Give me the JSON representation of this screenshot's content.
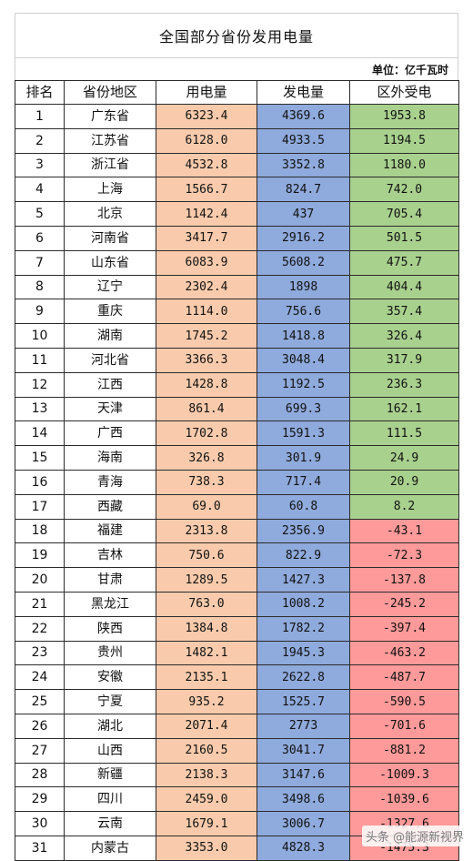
{
  "title": "全国部分省份发用电量",
  "unit": "单位：亿千瓦时",
  "headers": [
    "排名",
    "省份地区",
    "用电量",
    "发电量",
    "区外受电"
  ],
  "rows": [
    {
      "rank": "1",
      "province": "广东省",
      "usage": "6323.4",
      "generation": "4369.6",
      "external": "1953.8"
    },
    {
      "rank": "2",
      "province": "江苏省",
      "usage": "6128.0",
      "generation": "4933.5",
      "external": "1194.5"
    },
    {
      "rank": "3",
      "province": "浙江省",
      "usage": "4532.8",
      "generation": "3352.8",
      "external": "1180.0"
    },
    {
      "rank": "4",
      "province": "上海",
      "usage": "1566.7",
      "generation": "824.7",
      "external": "742.0"
    },
    {
      "rank": "5",
      "province": "北京",
      "usage": "1142.4",
      "generation": "437",
      "external": "705.4"
    },
    {
      "rank": "6",
      "province": "河南省",
      "usage": "3417.7",
      "generation": "2916.2",
      "external": "501.5"
    },
    {
      "rank": "7",
      "province": "山东省",
      "usage": "6083.9",
      "generation": "5608.2",
      "external": "475.7"
    },
    {
      "rank": "8",
      "province": "辽宁",
      "usage": "2302.4",
      "generation": "1898",
      "external": "404.4"
    },
    {
      "rank": "9",
      "province": "重庆",
      "usage": "1114.0",
      "generation": "756.6",
      "external": "357.4"
    },
    {
      "rank": "10",
      "province": "湖南",
      "usage": "1745.2",
      "generation": "1418.8",
      "external": "326.4"
    },
    {
      "rank": "11",
      "province": "河北省",
      "usage": "3366.3",
      "generation": "3048.4",
      "external": "317.9"
    },
    {
      "rank": "12",
      "province": "江西",
      "usage": "1428.8",
      "generation": "1192.5",
      "external": "236.3"
    },
    {
      "rank": "13",
      "province": "天津",
      "usage": "861.4",
      "generation": "699.3",
      "external": "162.1"
    },
    {
      "rank": "14",
      "province": "广西",
      "usage": "1702.8",
      "generation": "1591.3",
      "external": "111.5"
    },
    {
      "rank": "15",
      "province": "海南",
      "usage": "326.8",
      "generation": "301.9",
      "external": "24.9"
    },
    {
      "rank": "16",
      "province": "青海",
      "usage": "738.3",
      "generation": "717.4",
      "external": "20.9"
    },
    {
      "rank": "17",
      "province": "西藏",
      "usage": "69.0",
      "generation": "60.8",
      "external": "8.2"
    },
    {
      "rank": "18",
      "province": "福建",
      "usage": "2313.8",
      "generation": "2356.9",
      "external": "-43.1"
    },
    {
      "rank": "19",
      "province": "吉林",
      "usage": "750.6",
      "generation": "822.9",
      "external": "-72.3"
    },
    {
      "rank": "20",
      "province": "甘肃",
      "usage": "1289.5",
      "generation": "1427.3",
      "external": "-137.8"
    },
    {
      "rank": "21",
      "province": "黑龙江",
      "usage": "763.0",
      "generation": "1008.2",
      "external": "-245.2"
    },
    {
      "rank": "22",
      "province": "陕西",
      "usage": "1384.8",
      "generation": "1782.2",
      "external": "-397.4"
    },
    {
      "rank": "23",
      "province": "贵州",
      "usage": "1482.1",
      "generation": "1945.3",
      "external": "-463.2"
    },
    {
      "rank": "24",
      "province": "安徽",
      "usage": "2135.1",
      "generation": "2622.8",
      "external": "-487.7"
    },
    {
      "rank": "25",
      "province": "宁夏",
      "usage": "935.2",
      "generation": "1525.7",
      "external": "-590.5"
    },
    {
      "rank": "26",
      "province": "湖北",
      "usage": "2071.4",
      "generation": "2773",
      "external": "-701.6"
    },
    {
      "rank": "27",
      "province": "山西",
      "usage": "2160.5",
      "generation": "3041.7",
      "external": "-881.2"
    },
    {
      "rank": "28",
      "province": "新疆",
      "usage": "2138.3",
      "generation": "3147.6",
      "external": "-1009.3"
    },
    {
      "rank": "29",
      "province": "四川",
      "usage": "2459.0",
      "generation": "3498.6",
      "external": "-1039.6"
    },
    {
      "rank": "30",
      "province": "云南",
      "usage": "1679.1",
      "generation": "3006.7",
      "external": "-1327.6"
    },
    {
      "rank": "31",
      "province": "内蒙古",
      "usage": "3353.0",
      "generation": "4828.3",
      "external": "-1475.3"
    }
  ],
  "colors": {
    "usage_fill": "#f9cbac",
    "generation_fill": "#8faadc",
    "external_positive_fill": "#a9d18e",
    "external_negative_fill": "#ff9a9a"
  },
  "watermark": "头条 @能源新视界"
}
